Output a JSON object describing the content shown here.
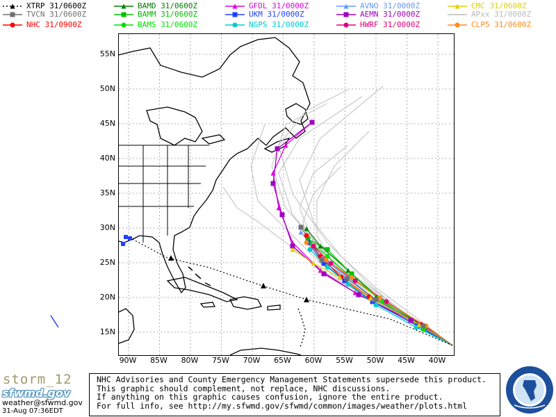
{
  "legend": [
    {
      "label": "XTRP  31/0600Z",
      "color": "#000000",
      "marker": "triangle",
      "dashed": true
    },
    {
      "label": "BAMD 31/0600Z",
      "color": "#008000",
      "marker": "triangle",
      "dashed": false
    },
    {
      "label": "GFDL  31/0000Z",
      "color": "#e000e0",
      "marker": "triangle",
      "dashed": false
    },
    {
      "label": "AVNO 31/0000Z",
      "color": "#6699ff",
      "marker": "triangle",
      "dashed": false
    },
    {
      "label": "CMC  31/0600Z",
      "color": "#e0d000",
      "marker": "triangle",
      "dashed": false
    },
    {
      "label": "TVCN  31/0600Z",
      "color": "#707070",
      "marker": "square",
      "dashed": false
    },
    {
      "label": "BAMM 31/0600Z",
      "color": "#00c000",
      "marker": "square",
      "dashed": false
    },
    {
      "label": "UKM   31/0000Z",
      "color": "#2040ff",
      "marker": "square",
      "dashed": false
    },
    {
      "label": "AEMN 31/0000Z",
      "color": "#a000c0",
      "marker": "square",
      "dashed": false
    },
    {
      "label": "APxx 31/0000Z",
      "color": "#bbbbbb",
      "marker": "none",
      "dashed": false
    },
    {
      "label": "NHC   31/0900Z",
      "color": "#ff0000",
      "marker": "circle",
      "dashed": false
    },
    {
      "label": "BAMS 31/0600Z",
      "color": "#00e000",
      "marker": "circle",
      "dashed": false
    },
    {
      "label": "NGPS 31/0000Z",
      "color": "#00cccc",
      "marker": "circle",
      "dashed": false
    },
    {
      "label": "HWRF 31/0000Z",
      "color": "#e0007a",
      "marker": "circle",
      "dashed": false
    },
    {
      "label": "CLP5 31/0600Z",
      "color": "#ff8c1a",
      "marker": "circle",
      "dashed": false
    }
  ],
  "map": {
    "lat_labels": [
      "55N",
      "50N",
      "45N",
      "40N",
      "35N",
      "30N",
      "25N",
      "20N",
      "15N"
    ],
    "lon_labels": [
      "90W",
      "85W",
      "80W",
      "75W",
      "70W",
      "65W",
      "60W",
      "55W",
      "50W",
      "45W",
      "40W"
    ]
  },
  "disclaimer_lines": [
    "NHC Advisories and County Emergency Management Statements supersede this product.",
    "This graphic should complement, not replace, NHC discussions.",
    "If anything on this graphic causes confusion, ignore the entire product.",
    "For full info, see  http://my.sfwmd.gov/sfwmd/common/images/weather/plots.html"
  ],
  "footer": {
    "storm_name": "storm_12",
    "logo_text": "sfwmd.gov",
    "email": "weather@sfwmd.gov",
    "timestamp": "31-Aug 07:36EDT"
  }
}
